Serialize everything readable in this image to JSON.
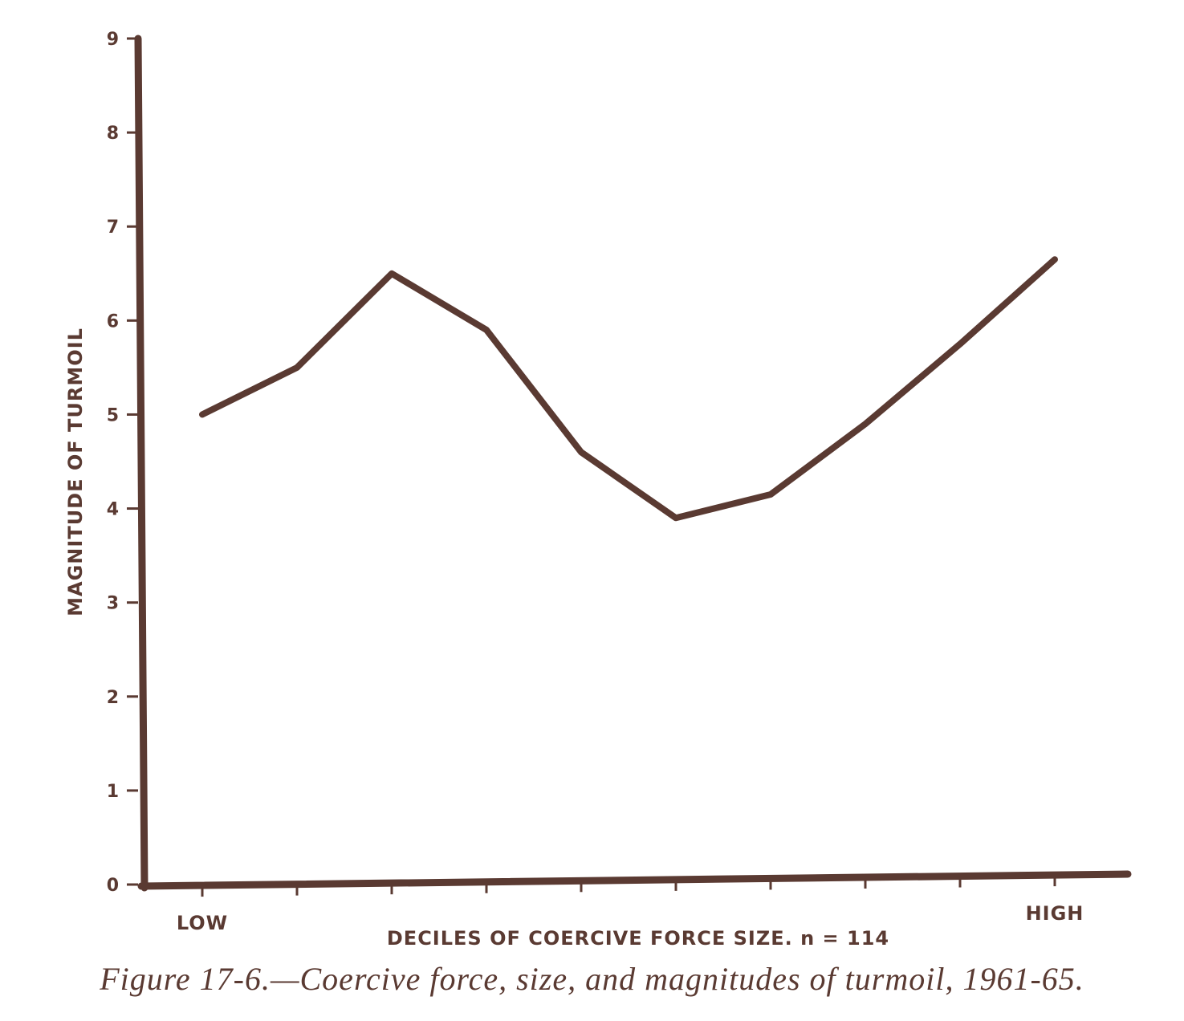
{
  "chart_data": {
    "type": "line",
    "title": "",
    "xlabel": "DECILES OF COERCIVE FORCE SIZE. n = 114",
    "ylabel": "MAGNITUDE OF TURMOIL",
    "x": [
      1,
      2,
      3,
      4,
      5,
      6,
      7,
      8,
      9,
      10
    ],
    "x_tick_labels": {
      "1": "LOW",
      "10": "HIGH"
    },
    "series": [
      {
        "values": [
          5.0,
          5.5,
          6.5,
          5.9,
          4.6,
          3.9,
          4.15,
          4.9,
          5.75,
          6.65
        ]
      }
    ],
    "ylim": [
      0,
      9
    ],
    "y_ticks": [
      "0",
      "1",
      "2",
      "3",
      "4",
      "5",
      "6",
      "7",
      "8",
      "9"
    ],
    "grid": false,
    "line_color": "#5a3a32"
  },
  "caption": "Figure 17-6.—Coercive force, size, and magnitudes of turmoil, 1961-65."
}
